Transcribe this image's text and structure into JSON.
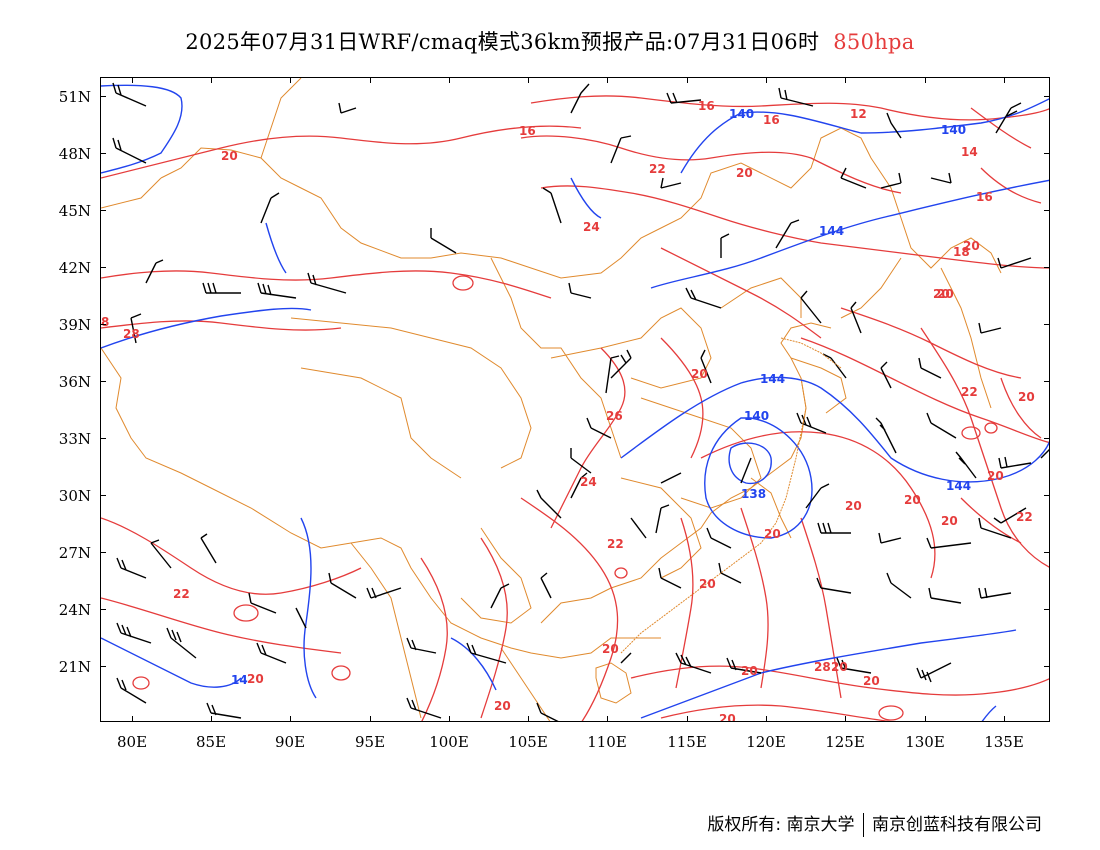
{
  "title": {
    "main": "2025年07月31日WRF/cmaq模式36km预报产品:07月31日06时",
    "level": "850hpa"
  },
  "axes": {
    "lat_labels": [
      "51N",
      "48N",
      "45N",
      "42N",
      "39N",
      "36N",
      "33N",
      "30N",
      "27N",
      "24N",
      "21N"
    ],
    "lon_labels": [
      "80E",
      "85E",
      "90E",
      "95E",
      "100E",
      "105E",
      "110E",
      "115E",
      "120E",
      "125E",
      "130E",
      "135E"
    ]
  },
  "contour_labels": {
    "height_blue": [
      "140",
      "140",
      "144",
      "144",
      "140",
      "138",
      "144",
      "14"
    ],
    "temperature_red": [
      "16",
      "16",
      "12",
      "14",
      "16",
      "16",
      "22",
      "20",
      "24",
      "28",
      "20",
      "20",
      "22",
      "26",
      "20",
      "24",
      "22",
      "20",
      "20",
      "20",
      "20",
      "22",
      "20",
      "22",
      "20",
      "20",
      "20",
      "20",
      "20",
      "20",
      "20",
      "28",
      "20",
      "20",
      "20",
      "20",
      "18",
      "8"
    ]
  },
  "colors": {
    "height_contour": "#2244ee",
    "temperature_contour": "#e53c3c",
    "boundary": "#e08a2e",
    "wind_barb": "#000000",
    "level_text": "#e53c3c"
  },
  "copyright": {
    "prefix": "版权所有:",
    "org1": "南京大学",
    "org2": "南京创蓝科技有限公司"
  }
}
